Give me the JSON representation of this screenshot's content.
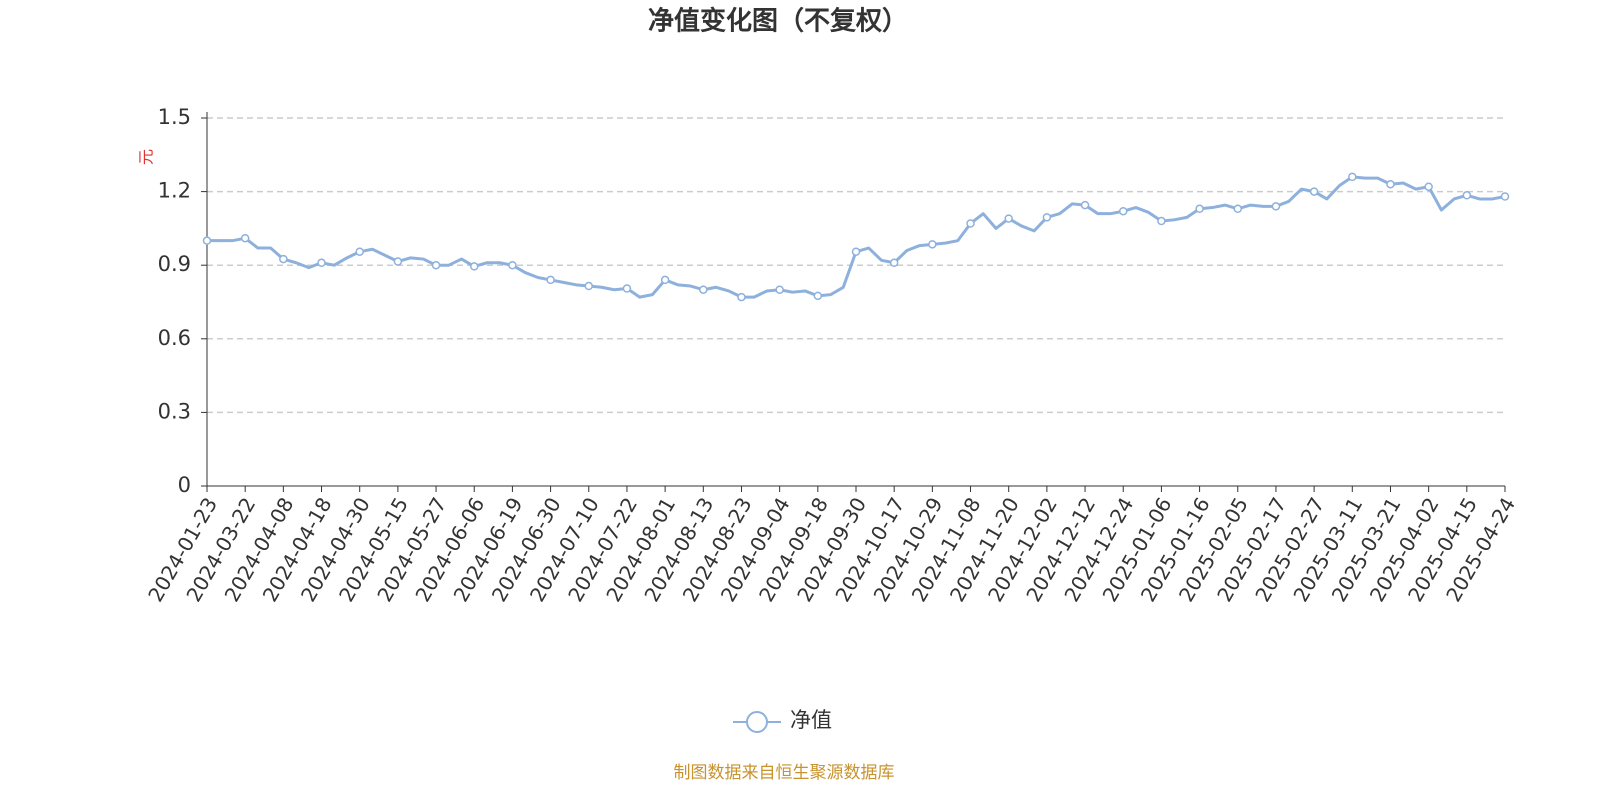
{
  "chart_data": {
    "type": "line",
    "title": "净值变化图（不复权）",
    "y_label": "元",
    "categories": [
      "2024-01-23",
      null,
      null,
      "2024-03-22",
      null,
      null,
      "2024-04-08",
      null,
      null,
      "2024-04-18",
      null,
      null,
      "2024-04-30",
      null,
      null,
      "2024-05-15",
      null,
      null,
      "2024-05-27",
      null,
      null,
      "2024-06-06",
      null,
      null,
      "2024-06-19",
      null,
      null,
      "2024-06-30",
      null,
      null,
      "2024-07-10",
      null,
      null,
      "2024-07-22",
      null,
      null,
      "2024-08-01",
      null,
      null,
      "2024-08-13",
      null,
      null,
      "2024-08-23",
      null,
      null,
      "2024-09-04",
      null,
      null,
      "2024-09-18",
      null,
      null,
      "2024-09-30",
      null,
      null,
      "2024-10-17",
      null,
      null,
      "2024-10-29",
      null,
      null,
      "2024-11-08",
      null,
      null,
      "2024-11-20",
      null,
      null,
      "2024-12-02",
      null,
      null,
      "2024-12-12",
      null,
      null,
      "2024-12-24",
      null,
      null,
      "2025-01-06",
      null,
      null,
      "2025-01-16",
      null,
      null,
      "2025-02-05",
      null,
      null,
      "2025-02-17",
      null,
      null,
      "2025-02-27",
      null,
      null,
      "2025-03-11",
      null,
      null,
      "2025-03-21",
      null,
      null,
      "2025-04-02",
      null,
      null,
      "2025-04-15",
      null,
      null,
      "2025-04-24"
    ],
    "series": [
      {
        "name": "净值",
        "color": "#8eb0dc",
        "values": [
          1.0,
          1.0,
          1.0,
          1.01,
          0.97,
          0.97,
          0.925,
          0.91,
          0.89,
          0.91,
          0.9,
          0.93,
          0.955,
          0.965,
          0.94,
          0.915,
          0.93,
          0.925,
          0.9,
          0.9,
          0.925,
          0.895,
          0.91,
          0.91,
          0.9,
          0.87,
          0.85,
          0.84,
          0.83,
          0.82,
          0.815,
          0.81,
          0.8,
          0.805,
          0.77,
          0.78,
          0.84,
          0.82,
          0.815,
          0.8,
          0.81,
          0.795,
          0.77,
          0.77,
          0.795,
          0.8,
          0.79,
          0.795,
          0.775,
          0.78,
          0.81,
          0.955,
          0.97,
          0.92,
          0.91,
          0.96,
          0.98,
          0.985,
          0.99,
          1.0,
          1.07,
          1.11,
          1.05,
          1.09,
          1.06,
          1.04,
          1.095,
          1.11,
          1.15,
          1.145,
          1.11,
          1.11,
          1.12,
          1.135,
          1.115,
          1.08,
          1.085,
          1.095,
          1.13,
          1.135,
          1.145,
          1.13,
          1.145,
          1.14,
          1.14,
          1.16,
          1.21,
          1.2,
          1.17,
          1.225,
          1.26,
          1.255,
          1.255,
          1.23,
          1.235,
          1.21,
          1.22,
          1.125,
          1.17,
          1.185,
          1.17,
          1.17,
          1.18
        ]
      }
    ],
    "ylim": [
      0,
      1.5
    ],
    "yticks": [
      0,
      0.3,
      0.6,
      0.9,
      1.2,
      1.5
    ],
    "grid": true,
    "footer": "制图数据来自恒生聚源数据库"
  }
}
